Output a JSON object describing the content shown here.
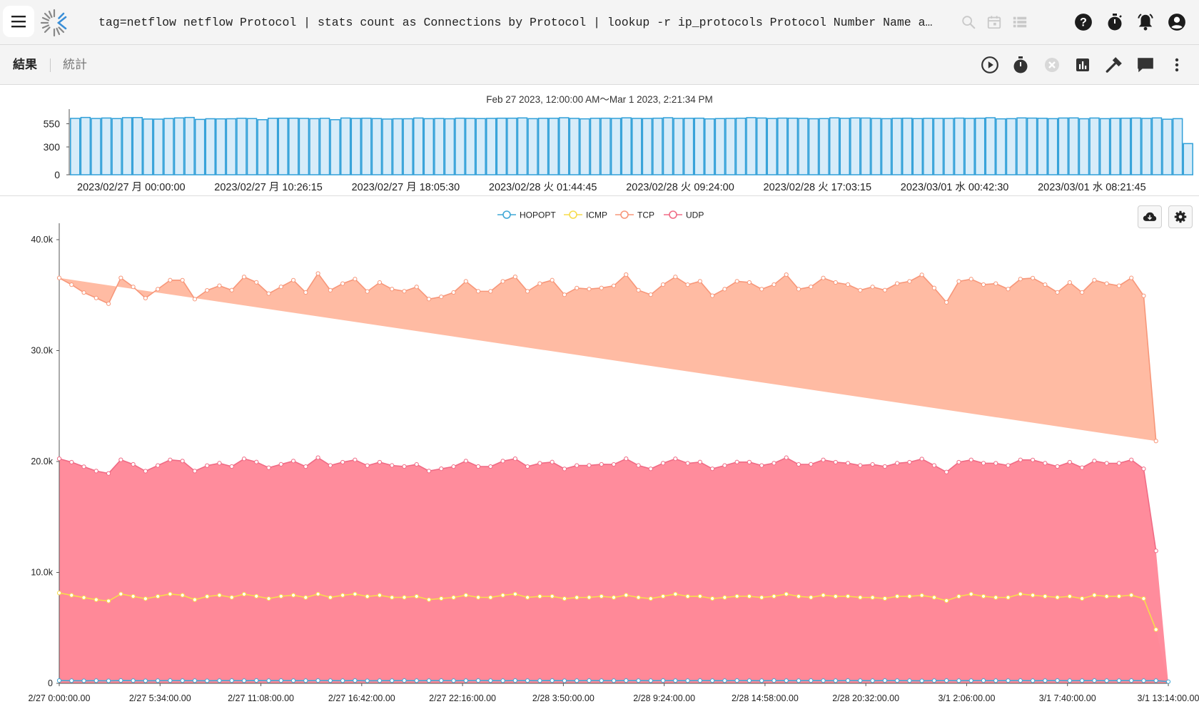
{
  "header": {
    "query": "tag=netflow netflow Protocol | stats count as Connections by Protocol | lookup -r ip_protocols Protocol Number Name as Protocol | chart Connections by Protocol"
  },
  "icons": {
    "menu": "hamburger-menu-icon",
    "logo": "gravwell-logo-icon",
    "query_actions": [
      "search-icon",
      "calendar-icon",
      "list-icon"
    ],
    "top_right": [
      "help-icon",
      "timer-icon",
      "notifications-bell-icon",
      "account-icon"
    ],
    "toolbar": [
      "play-icon",
      "stopwatch-icon",
      "cancel-icon",
      "bar-chart-icon",
      "hammer-icon",
      "comment-icon",
      "more-vert-icon"
    ],
    "chart_controls": [
      "cloud-download-icon",
      "gear-icon"
    ]
  },
  "tabs": {
    "results": "結果",
    "stats": "統計"
  },
  "overview": {
    "range_label": "Feb 27 2023, 12:00:00 AM〜Mar 1 2023, 2:21:34 PM",
    "y_ticks": [
      "550",
      "300",
      "0"
    ],
    "x_ticks": [
      "2023/02/27 月 00:00:00",
      "2023/02/27 月 10:26:15",
      "2023/02/27 月 18:05:30",
      "2023/02/28 火 01:44:45",
      "2023/02/28 火 09:24:00",
      "2023/02/28 火 17:03:15",
      "2023/03/01 水 00:42:30",
      "2023/03/01 水 08:21:45"
    ]
  },
  "colors": {
    "hopopt": "#3fa7d6",
    "icmp": "#f7dc4c",
    "tcp": "#ffb79e",
    "tcp_line": "#f7977a",
    "udp": "#ff8294",
    "udp_line": "#f06b85",
    "overview_bar_fill": "#d7ecf9",
    "overview_bar_stroke": "#2f9fd8"
  },
  "chart_data": {
    "type": "area",
    "legend_position": "top-center",
    "x_ticks": [
      "2/27 0:00:00.00",
      "2/27 5:34:00.00",
      "2/27 11:08:00.00",
      "2/27 16:42:00.00",
      "2/27 22:16:00.00",
      "2/28 3:50:00.00",
      "2/28 9:24:00.00",
      "2/28 14:58:00.00",
      "2/28 20:32:00.00",
      "3/1 2:06:00.00",
      "3/1 7:40:00.00",
      "3/1 13:14:00.00"
    ],
    "y_ticks": [
      "0",
      "10.0k",
      "20.0k",
      "30.0k",
      "40.0k"
    ],
    "ylim": [
      0,
      40000
    ],
    "stacked": true,
    "series": [
      {
        "name": "HOPOPT",
        "values": [
          250,
          240,
          230,
          240,
          225,
          255,
          245,
          230,
          240,
          250,
          245,
          240,
          230,
          245,
          250,
          240,
          255,
          240,
          250,
          245,
          240,
          250,
          245,
          240,
          250,
          230,
          240,
          245,
          250,
          240,
          245,
          250,
          240,
          245,
          250,
          245,
          240,
          250,
          245,
          240,
          250,
          235,
          240,
          250,
          245,
          240,
          250,
          245,
          240,
          250,
          245,
          240,
          250,
          245,
          240,
          250,
          245,
          240,
          250,
          245,
          240,
          250,
          245,
          240,
          250,
          245,
          240,
          250,
          245,
          240,
          230,
          245,
          250,
          240,
          245,
          250,
          240,
          245,
          250,
          240,
          245,
          250,
          240,
          245,
          250,
          240,
          245,
          250,
          240,
          245,
          150
        ]
      },
      {
        "name": "ICMP",
        "values": [
          7900,
          7700,
          7500,
          7300,
          7200,
          7800,
          7600,
          7400,
          7600,
          7800,
          7700,
          7300,
          7600,
          7700,
          7500,
          7800,
          7600,
          7400,
          7600,
          7700,
          7500,
          7800,
          7500,
          7700,
          7800,
          7600,
          7700,
          7500,
          7500,
          7600,
          7300,
          7400,
          7500,
          7700,
          7500,
          7500,
          7700,
          7800,
          7500,
          7600,
          7600,
          7400,
          7500,
          7500,
          7600,
          7500,
          7700,
          7500,
          7400,
          7600,
          7800,
          7600,
          7600,
          7400,
          7500,
          7600,
          7600,
          7500,
          7600,
          7800,
          7600,
          7500,
          7700,
          7600,
          7600,
          7500,
          7500,
          7400,
          7600,
          7600,
          7700,
          7500,
          7200,
          7600,
          7800,
          7600,
          7500,
          7500,
          7800,
          7700,
          7600,
          7500,
          7600,
          7400,
          7700,
          7600,
          7600,
          7700,
          7400,
          4600
        ]
      },
      {
        "name": "TCP",
        "values": [
          16300,
          16000,
          15700,
          15600,
          15300,
          16400,
          16000,
          15600,
          15900,
          16200,
          16300,
          15500,
          15800,
          16000,
          15900,
          16400,
          16200,
          15700,
          16000,
          16300,
          15700,
          16600,
          15800,
          16100,
          16300,
          15700,
          16200,
          15900,
          15800,
          16000,
          15500,
          15500,
          15700,
          16200,
          15800,
          15800,
          16200,
          16400,
          15800,
          16200,
          16400,
          15700,
          16000,
          15900,
          15900,
          16100,
          16600,
          15800,
          15700,
          16100,
          16400,
          16100,
          16300,
          15600,
          15900,
          16300,
          16200,
          15900,
          16100,
          16500,
          15800,
          16000,
          16400,
          16200,
          16100,
          15800,
          16000,
          15900,
          16200,
          16300,
          16600,
          16000,
          15300,
          16300,
          16300,
          16100,
          16200,
          15900,
          16300,
          16400,
          16100,
          15700,
          16200,
          15800,
          16300,
          16200,
          16000,
          16400,
          15600,
          9900
        ]
      },
      {
        "name": "UDP",
        "values": [
          12100,
          12000,
          11800,
          11600,
          11500,
          12100,
          11900,
          11500,
          11800,
          12100,
          12100,
          11600,
          11800,
          11900,
          11800,
          12200,
          12100,
          11800,
          11900,
          12100,
          11800,
          12300,
          11900,
          12000,
          12100,
          11800,
          12000,
          11900,
          11800,
          11900,
          11600,
          11700,
          11800,
          12100,
          11800,
          11800,
          12100,
          12200,
          11800,
          12000,
          12100,
          11700,
          11900,
          11900,
          11900,
          12000,
          12300,
          11900,
          11700,
          12000,
          12200,
          12000,
          12100,
          11700,
          11900,
          12100,
          12100,
          11900,
          12000,
          12300,
          11900,
          12000,
          12200,
          12100,
          12000,
          11900,
          12000,
          11900,
          12000,
          12100,
          12300,
          11900,
          11600,
          12100,
          12100,
          12000,
          12100,
          11900,
          12100,
          12200,
          12000,
          11800,
          12100,
          11800,
          12100,
          12000,
          12000,
          12200,
          11700,
          7100
        ]
      }
    ]
  },
  "overview_chart_data": {
    "type": "bar",
    "ylim": [
      0,
      700
    ],
    "values": [
      608,
      618,
      607,
      612,
      606,
      616,
      617,
      601,
      600,
      607,
      613,
      618,
      597,
      604,
      603,
      604,
      609,
      606,
      594,
      609,
      610,
      610,
      608,
      605,
      609,
      594,
      612,
      608,
      610,
      606,
      601,
      604,
      604,
      612,
      605,
      607,
      604,
      610,
      608,
      606,
      608,
      610,
      610,
      613,
      605,
      609,
      609,
      615,
      608,
      603,
      609,
      610,
      608,
      614,
      608,
      607,
      610,
      615,
      608,
      609,
      610,
      603,
      606,
      608,
      610,
      616,
      612,
      607,
      611,
      610,
      608,
      604,
      606,
      614,
      609,
      613,
      612,
      608,
      605,
      609,
      610,
      606,
      609,
      608,
      608,
      611,
      608,
      610,
      615,
      603,
      605,
      613,
      611,
      609,
      605,
      612,
      613,
      604,
      612,
      605,
      609,
      610,
      612,
      608,
      613,
      599,
      605,
      336
    ]
  },
  "legend": [
    "HOPOPT",
    "ICMP",
    "TCP",
    "UDP"
  ]
}
